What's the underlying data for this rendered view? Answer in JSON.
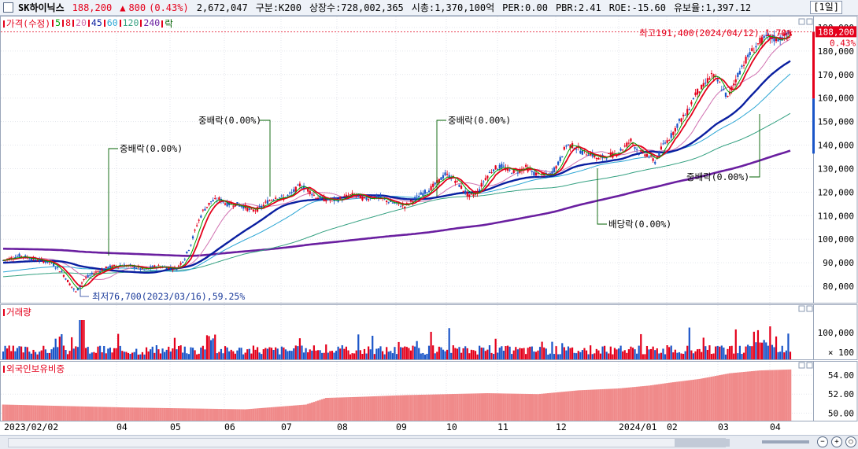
{
  "header": {
    "stock_name": "SK하이닉스",
    "price": "188,200",
    "change_arrow": "▲",
    "change": "800",
    "change_pct": "(0.43%)",
    "volume": "2,672,047",
    "segment": "구분:K200",
    "listed_shares": "상장수:728,002,365",
    "market_cap": "시총:1,370,100억",
    "per": "PER:0.00",
    "pbr": "PBR:2.41",
    "roe": "ROE:-15.60",
    "float": "유보율:1,397.12",
    "period": "[1일]"
  },
  "legend": [
    {
      "label": "가격(수정)",
      "color": "#e4001b"
    },
    {
      "label": "5",
      "color": "#00a000"
    },
    {
      "label": "8",
      "color": "#e4001b"
    },
    {
      "label": "20",
      "color": "#d070b0"
    },
    {
      "label": "45",
      "color": "#0a1fa0"
    },
    {
      "label": "60",
      "color": "#2aa5d4"
    },
    {
      "label": "120",
      "color": "#33a080"
    },
    {
      "label": "240",
      "color": "#6a1fa0"
    },
    {
      "label": "락",
      "color": "#006000"
    }
  ],
  "panels": {
    "volume_title": "거래량",
    "foreign_title": "외국인보유비중"
  },
  "annotations": {
    "high": "최고191,400(2024/04/12),1.70%",
    "low": "최저76,700(2023/03/16),59.25%",
    "events": [
      "중배락(0.00%)",
      "중배락(0.00%)",
      "중배락(0.00%)",
      "배당락(0.00%)",
      "중배락(0.00%)"
    ]
  },
  "price_tag": {
    "value": "188,200",
    "pct": "0.43%"
  },
  "chart_data": [
    {
      "type": "candlestick",
      "title": "가격(수정)",
      "x_labels": [
        "2023/02/02",
        "04",
        "05",
        "06",
        "07",
        "08",
        "09",
        "10",
        "11",
        "12",
        "2024/01",
        "02",
        "03",
        "04"
      ],
      "ylim": [
        73000,
        195000
      ],
      "y_ticks": [
        80000,
        90000,
        100000,
        110000,
        120000,
        130000,
        140000,
        150000,
        160000,
        170000,
        180000,
        190000
      ],
      "y_tick_labels": [
        "80,000",
        "90,000",
        "100,000",
        "110,000",
        "120,000",
        "130,000",
        "140,000",
        "150,000",
        "160,000",
        "170,000",
        "180,000",
        "190,000"
      ],
      "close_path": [
        [
          0,
          91000
        ],
        [
          8,
          93000
        ],
        [
          16,
          91500
        ],
        [
          24,
          90000
        ],
        [
          29,
          86000
        ],
        [
          33,
          81000
        ],
        [
          36,
          77500
        ],
        [
          40,
          83000
        ],
        [
          46,
          86000
        ],
        [
          52,
          88000
        ],
        [
          58,
          89000
        ],
        [
          64,
          88500
        ],
        [
          70,
          87000
        ],
        [
          76,
          88500
        ],
        [
          82,
          88000
        ],
        [
          86,
          87500
        ],
        [
          90,
          92000
        ],
        [
          93,
          98000
        ],
        [
          96,
          106000
        ],
        [
          99,
          112000
        ],
        [
          103,
          116000
        ],
        [
          107,
          117000
        ],
        [
          111,
          115000
        ],
        [
          115,
          115000
        ],
        [
          119,
          114000
        ],
        [
          123,
          112000
        ],
        [
          127,
          113000
        ],
        [
          131,
          116000
        ],
        [
          135,
          118000
        ],
        [
          139,
          117500
        ],
        [
          143,
          119500
        ],
        [
          147,
          123000
        ],
        [
          151,
          121000
        ],
        [
          155,
          118000
        ],
        [
          159,
          117000
        ],
        [
          163,
          116500
        ],
        [
          167,
          117000
        ],
        [
          171,
          118500
        ],
        [
          175,
          119000
        ],
        [
          179,
          117000
        ],
        [
          183,
          118000
        ],
        [
          187,
          117500
        ],
        [
          191,
          116000
        ],
        [
          195,
          115000
        ],
        [
          199,
          114000
        ],
        [
          203,
          116500
        ],
        [
          207,
          119000
        ],
        [
          211,
          121000
        ],
        [
          215,
          124000
        ],
        [
          219,
          127500
        ],
        [
          223,
          126000
        ],
        [
          227,
          122000
        ],
        [
          231,
          118000
        ],
        [
          235,
          120000
        ],
        [
          239,
          126000
        ],
        [
          243,
          130000
        ],
        [
          247,
          131000
        ],
        [
          251,
          129000
        ],
        [
          255,
          129000
        ],
        [
          259,
          130500
        ],
        [
          263,
          128000
        ],
        [
          267,
          127000
        ],
        [
          271,
          127500
        ],
        [
          275,
          132000
        ],
        [
          279,
          140000
        ],
        [
          283,
          139500
        ],
        [
          287,
          137000
        ],
        [
          291,
          136500
        ],
        [
          295,
          134000
        ],
        [
          299,
          135500
        ],
        [
          303,
          136000
        ],
        [
          307,
          138500
        ],
        [
          311,
          142000
        ],
        [
          315,
          137000
        ],
        [
          319,
          136000
        ],
        [
          323,
          133000
        ],
        [
          327,
          140000
        ],
        [
          331,
          144000
        ],
        [
          335,
          150000
        ],
        [
          339,
          154000
        ],
        [
          343,
          162000
        ],
        [
          347,
          165000
        ],
        [
          351,
          170000
        ],
        [
          355,
          166000
        ],
        [
          359,
          160000
        ],
        [
          363,
          168000
        ],
        [
          367,
          175000
        ],
        [
          371,
          180000
        ],
        [
          375,
          184000
        ],
        [
          379,
          186000
        ],
        [
          383,
          185000
        ],
        [
          387,
          186000
        ],
        [
          390,
          188200
        ]
      ],
      "ma": [
        {
          "name": "5",
          "color": "#00a000",
          "values": []
        },
        {
          "name": "45",
          "color": "#0a1fa0",
          "values": []
        },
        {
          "name": "120",
          "color": "#33a080",
          "values": []
        },
        {
          "name": "240",
          "color": "#6a1fa0",
          "values": []
        }
      ]
    },
    {
      "type": "bar",
      "title": "거래량",
      "y_tick_labels": [
        "100,000",
        "× 100"
      ],
      "values": "daily volume bars, notable peaks near 04 and 06, 08, 03/04",
      "series_colors": {
        "up": "#e4001b",
        "down": "#1a55c8"
      }
    },
    {
      "type": "area",
      "title": "외국인보유비중",
      "y_tick_labels": [
        "54.00",
        "52.00",
        "50.00"
      ],
      "ylim": [
        49.2,
        55.5
      ],
      "points": [
        [
          0,
          50.9
        ],
        [
          60,
          50.6
        ],
        [
          120,
          50.4
        ],
        [
          150,
          50.9
        ],
        [
          160,
          51.6
        ],
        [
          175,
          51.7
        ],
        [
          200,
          51.9
        ],
        [
          240,
          52.1
        ],
        [
          265,
          52.0
        ],
        [
          285,
          52.4
        ],
        [
          305,
          52.6
        ],
        [
          320,
          52.9
        ],
        [
          330,
          53.2
        ],
        [
          345,
          53.6
        ],
        [
          360,
          54.2
        ],
        [
          375,
          54.5
        ],
        [
          390,
          54.6
        ]
      ],
      "color": "#f08a8a"
    }
  ]
}
